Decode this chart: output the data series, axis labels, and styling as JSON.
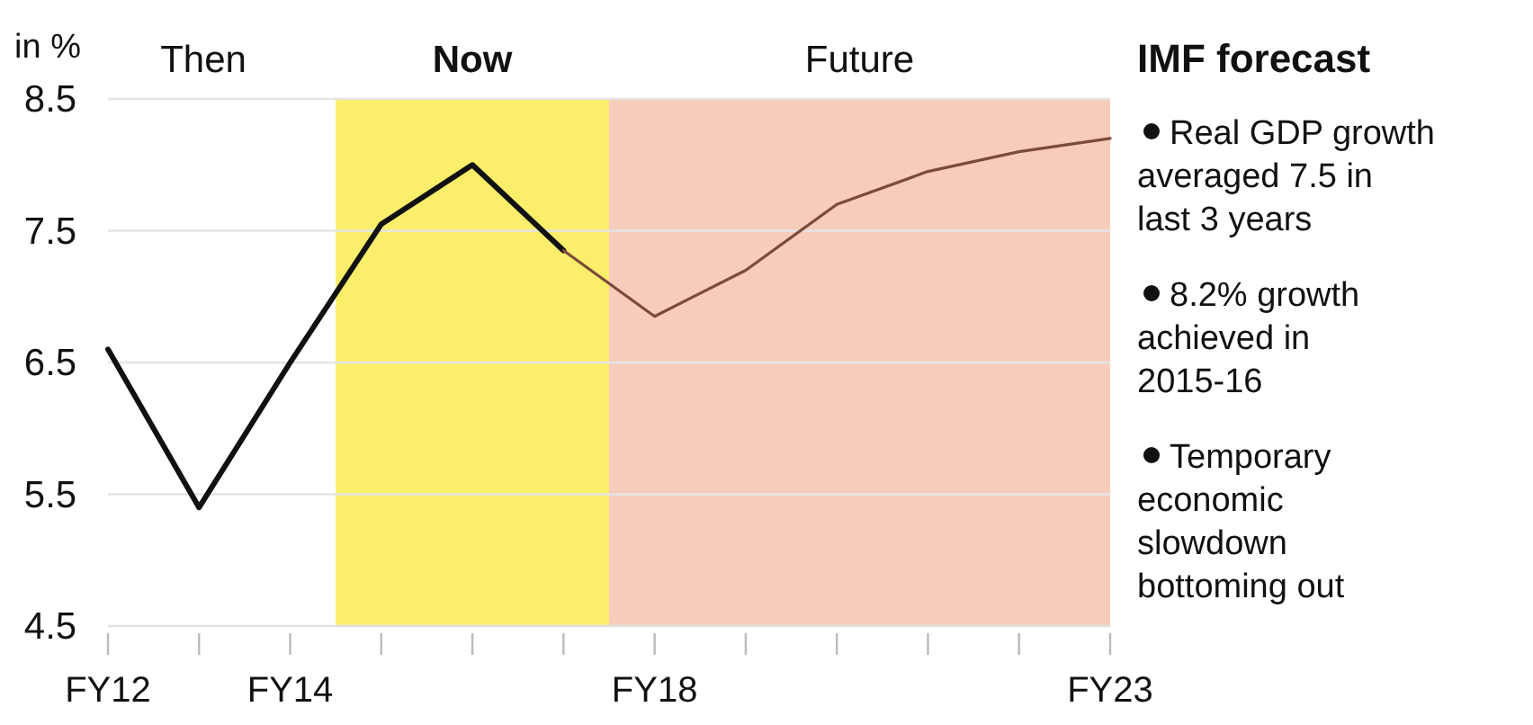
{
  "chart_data": {
    "type": "line",
    "ylabel": "in %",
    "categories": [
      "FY12",
      null,
      "FY14",
      null,
      null,
      null,
      "FY18",
      null,
      null,
      null,
      null,
      "FY23"
    ],
    "ylim": [
      4.5,
      8.5
    ],
    "yticks": [
      4.5,
      5.5,
      6.5,
      7.5,
      8.5
    ],
    "grid": "y",
    "series": [
      {
        "color": "#111111",
        "values": [
          6.6,
          5.4,
          6.5,
          7.55,
          8.0,
          7.35,
          null,
          null,
          null,
          null,
          null,
          null
        ]
      },
      {
        "color": "#7a4a3a",
        "values": [
          null,
          null,
          null,
          null,
          null,
          7.35,
          6.85,
          7.2,
          7.7,
          7.95,
          8.1,
          8.2
        ]
      }
    ],
    "annotations": [
      "Then",
      "Now",
      "Future",
      "IMF forecast",
      "Real GDP growth averaged 7.5 in last 3 years",
      "8.2% growth achieved in 2015-16",
      "Temporary economic slowdown bottoming out"
    ]
  }
}
